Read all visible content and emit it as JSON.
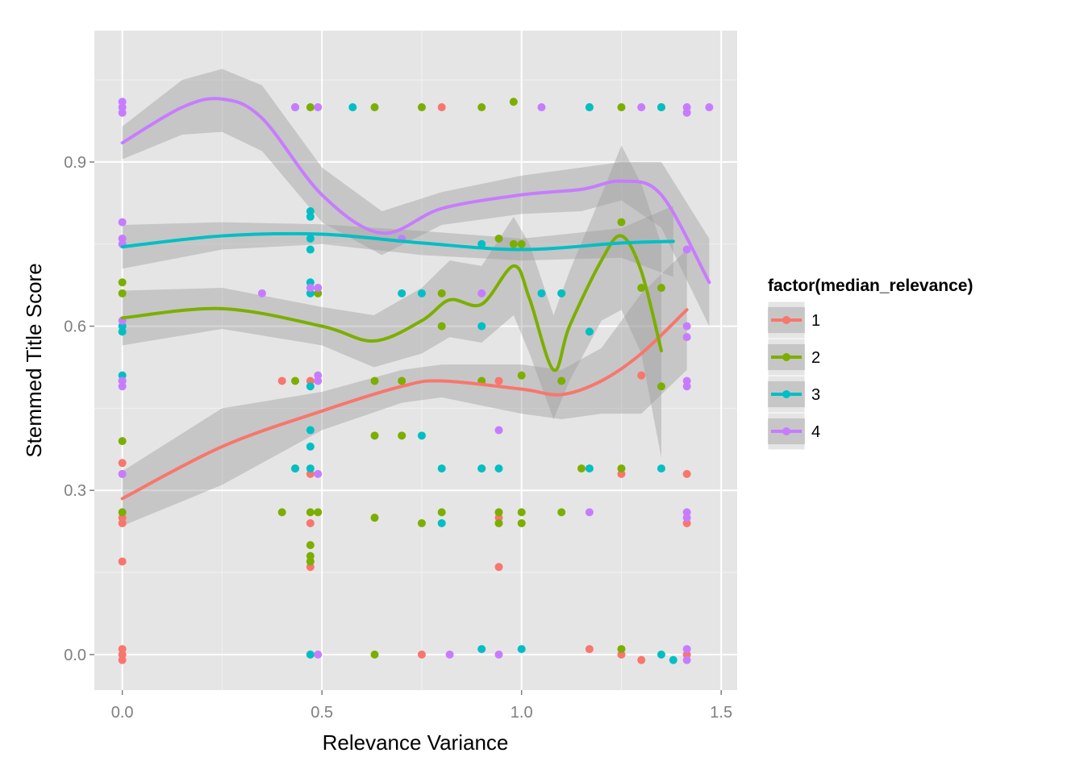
{
  "chart_data": {
    "type": "scatter",
    "title": "",
    "xlabel": "Relevance Variance",
    "ylabel": "Stemmed Title Score",
    "xlim": [
      -0.07,
      1.54
    ],
    "ylim": [
      -0.065,
      1.14
    ],
    "x_ticks": [
      0.0,
      0.5,
      1.0,
      1.5
    ],
    "x_tick_labels": [
      "0.0",
      "0.5",
      "1.0",
      "1.5"
    ],
    "y_ticks": [
      0.0,
      0.3,
      0.6,
      0.9
    ],
    "y_tick_labels": [
      "0.0",
      "0.3",
      "0.6",
      "0.9"
    ],
    "grid": true,
    "legend": {
      "title": "factor(median_relevance)",
      "position": "right"
    },
    "colors": {
      "panel": "#e5e5e5",
      "grid_major": "#ffffff",
      "grid_minor": "#f2f2f2",
      "ribbon": "#999999"
    },
    "x_levels": [
      0.0,
      0.4,
      0.433,
      0.471,
      0.49,
      0.5,
      0.577,
      0.632,
      0.7,
      0.75,
      0.8,
      0.816,
      0.9,
      0.943,
      0.98,
      1.0,
      1.1,
      1.15,
      1.17,
      1.25,
      1.3,
      1.35,
      1.414
    ],
    "series": [
      {
        "name": "1",
        "color": "#f8766d",
        "points": [
          [
            0.0,
            0.0
          ],
          [
            0.0,
            0.01
          ],
          [
            0.0,
            -0.01
          ],
          [
            0.0,
            0.25
          ],
          [
            0.0,
            0.24
          ],
          [
            0.0,
            0.33
          ],
          [
            0.0,
            0.35
          ],
          [
            0.0,
            0.17
          ],
          [
            0.0,
            0.5
          ],
          [
            0.4,
            0.5
          ],
          [
            0.471,
            0.0
          ],
          [
            0.471,
            0.24
          ],
          [
            0.471,
            0.33
          ],
          [
            0.471,
            0.16
          ],
          [
            0.471,
            0.5
          ],
          [
            0.75,
            0.0
          ],
          [
            0.8,
            1.0
          ],
          [
            0.943,
            0.16
          ],
          [
            0.943,
            0.25
          ],
          [
            0.943,
            0.5
          ],
          [
            1.17,
            0.01
          ],
          [
            1.17,
            1.0
          ],
          [
            1.25,
            0.0
          ],
          [
            1.25,
            0.33
          ],
          [
            1.3,
            0.51
          ],
          [
            1.3,
            -0.01
          ],
          [
            1.414,
            0.33
          ],
          [
            1.414,
            0.24
          ],
          [
            1.414,
            0.0
          ]
        ],
        "smooth": [
          [
            0.0,
            0.285
          ],
          [
            0.25,
            0.38
          ],
          [
            0.5,
            0.445
          ],
          [
            0.7,
            0.49
          ],
          [
            0.8,
            0.5
          ],
          [
            1.0,
            0.485
          ],
          [
            1.1,
            0.475
          ],
          [
            1.2,
            0.5
          ],
          [
            1.3,
            0.55
          ],
          [
            1.414,
            0.63
          ]
        ],
        "band": [
          [
            0.0,
            0.235,
            0.335
          ],
          [
            0.25,
            0.31,
            0.45
          ],
          [
            0.5,
            0.41,
            0.48
          ],
          [
            0.7,
            0.46,
            0.52
          ],
          [
            0.8,
            0.47,
            0.53
          ],
          [
            1.0,
            0.44,
            0.53
          ],
          [
            1.1,
            0.43,
            0.52
          ],
          [
            1.2,
            0.44,
            0.56
          ],
          [
            1.3,
            0.44,
            0.66
          ],
          [
            1.414,
            0.52,
            0.74
          ]
        ]
      },
      {
        "name": "2",
        "color": "#7cae00",
        "points": [
          [
            0.0,
            0.39
          ],
          [
            0.0,
            0.26
          ],
          [
            0.0,
            0.68
          ],
          [
            0.0,
            0.66
          ],
          [
            0.4,
            0.26
          ],
          [
            0.433,
            0.5
          ],
          [
            0.433,
            0.34
          ],
          [
            0.471,
            0.26
          ],
          [
            0.471,
            0.2
          ],
          [
            0.471,
            0.18
          ],
          [
            0.471,
            0.17
          ],
          [
            0.471,
            1.0
          ],
          [
            0.49,
            0.26
          ],
          [
            0.49,
            0.66
          ],
          [
            0.632,
            0.0
          ],
          [
            0.632,
            0.25
          ],
          [
            0.632,
            0.4
          ],
          [
            0.632,
            0.5
          ],
          [
            0.632,
            1.0
          ],
          [
            0.7,
            0.4
          ],
          [
            0.7,
            0.5
          ],
          [
            0.75,
            0.24
          ],
          [
            0.75,
            1.0
          ],
          [
            0.8,
            0.26
          ],
          [
            0.8,
            0.6
          ],
          [
            0.8,
            0.66
          ],
          [
            0.9,
            0.34
          ],
          [
            0.9,
            0.5
          ],
          [
            0.9,
            1.0
          ],
          [
            0.943,
            0.26
          ],
          [
            0.943,
            0.24
          ],
          [
            0.943,
            0.76
          ],
          [
            0.98,
            1.01
          ],
          [
            0.98,
            0.75
          ],
          [
            1.0,
            0.26
          ],
          [
            1.0,
            0.24
          ],
          [
            1.0,
            0.75
          ],
          [
            1.0,
            0.51
          ],
          [
            1.1,
            0.26
          ],
          [
            1.1,
            0.5
          ],
          [
            1.1,
            0.66
          ],
          [
            1.15,
            0.34
          ],
          [
            1.25,
            0.79
          ],
          [
            1.25,
            0.34
          ],
          [
            1.25,
            1.0
          ],
          [
            1.25,
            0.01
          ],
          [
            1.3,
            0.67
          ],
          [
            1.35,
            0.49
          ],
          [
            1.35,
            0.67
          ],
          [
            1.35,
            1.0
          ]
        ],
        "smooth": [
          [
            0.0,
            0.615
          ],
          [
            0.25,
            0.632
          ],
          [
            0.5,
            0.6
          ],
          [
            0.63,
            0.573
          ],
          [
            0.75,
            0.61
          ],
          [
            0.82,
            0.648
          ],
          [
            0.9,
            0.64
          ],
          [
            0.98,
            0.71
          ],
          [
            1.02,
            0.65
          ],
          [
            1.08,
            0.52
          ],
          [
            1.12,
            0.6
          ],
          [
            1.2,
            0.72
          ],
          [
            1.25,
            0.765
          ],
          [
            1.3,
            0.7
          ],
          [
            1.35,
            0.555
          ]
        ],
        "band": [
          [
            0.0,
            0.565,
            0.665
          ],
          [
            0.25,
            0.595,
            0.67
          ],
          [
            0.5,
            0.565,
            0.635
          ],
          [
            0.63,
            0.525,
            0.62
          ],
          [
            0.75,
            0.55,
            0.67
          ],
          [
            0.82,
            0.58,
            0.72
          ],
          [
            0.9,
            0.57,
            0.71
          ],
          [
            0.98,
            0.62,
            0.8
          ],
          [
            1.02,
            0.55,
            0.75
          ],
          [
            1.08,
            0.43,
            0.62
          ],
          [
            1.12,
            0.5,
            0.7
          ],
          [
            1.2,
            0.61,
            0.84
          ],
          [
            1.25,
            0.63,
            0.93
          ],
          [
            1.3,
            0.55,
            0.86
          ],
          [
            1.35,
            0.36,
            0.75
          ]
        ]
      },
      {
        "name": "3",
        "color": "#00bfc4",
        "points": [
          [
            0.0,
            0.59
          ],
          [
            0.0,
            0.6
          ],
          [
            0.0,
            0.51
          ],
          [
            0.433,
            1.0
          ],
          [
            0.433,
            0.34
          ],
          [
            0.471,
            0.81
          ],
          [
            0.471,
            0.8
          ],
          [
            0.471,
            0.76
          ],
          [
            0.471,
            0.74
          ],
          [
            0.471,
            0.68
          ],
          [
            0.471,
            0.66
          ],
          [
            0.471,
            0.41
          ],
          [
            0.471,
            0.38
          ],
          [
            0.471,
            0.34
          ],
          [
            0.471,
            0.49
          ],
          [
            0.471,
            0.0
          ],
          [
            0.577,
            1.0
          ],
          [
            0.7,
            0.66
          ],
          [
            0.75,
            0.4
          ],
          [
            0.75,
            0.66
          ],
          [
            0.8,
            0.34
          ],
          [
            0.8,
            0.24
          ],
          [
            0.9,
            0.6
          ],
          [
            0.9,
            0.75
          ],
          [
            0.9,
            0.34
          ],
          [
            0.9,
            0.01
          ],
          [
            0.943,
            0.34
          ],
          [
            1.0,
            0.01
          ],
          [
            1.05,
            0.66
          ],
          [
            1.1,
            0.66
          ],
          [
            1.17,
            0.59
          ],
          [
            1.17,
            0.34
          ],
          [
            1.17,
            1.0
          ],
          [
            1.35,
            0.34
          ],
          [
            1.35,
            1.0
          ],
          [
            1.35,
            0.0
          ],
          [
            1.38,
            -0.01
          ]
        ],
        "smooth": [
          [
            0.0,
            0.745
          ],
          [
            0.25,
            0.765
          ],
          [
            0.5,
            0.768
          ],
          [
            0.75,
            0.752
          ],
          [
            1.0,
            0.74
          ],
          [
            1.25,
            0.752
          ],
          [
            1.38,
            0.755
          ]
        ],
        "band": [
          [
            0.0,
            0.705,
            0.785
          ],
          [
            0.25,
            0.74,
            0.79
          ],
          [
            0.5,
            0.75,
            0.786
          ],
          [
            0.75,
            0.73,
            0.774
          ],
          [
            1.0,
            0.72,
            0.76
          ],
          [
            1.25,
            0.725,
            0.779
          ],
          [
            1.38,
            0.69,
            0.82
          ]
        ]
      },
      {
        "name": "4",
        "color": "#c77cff",
        "points": [
          [
            0.0,
            1.0
          ],
          [
            0.0,
            1.01
          ],
          [
            0.0,
            0.99
          ],
          [
            0.0,
            0.79
          ],
          [
            0.0,
            0.76
          ],
          [
            0.0,
            0.75
          ],
          [
            0.0,
            0.61
          ],
          [
            0.0,
            0.49
          ],
          [
            0.0,
            0.5
          ],
          [
            0.0,
            0.33
          ],
          [
            0.35,
            0.66
          ],
          [
            0.433,
            1.0
          ],
          [
            0.471,
            0.67
          ],
          [
            0.49,
            0.67
          ],
          [
            0.49,
            0.51
          ],
          [
            0.49,
            0.5
          ],
          [
            0.49,
            1.0
          ],
          [
            0.49,
            0.33
          ],
          [
            0.49,
            0.0
          ],
          [
            0.7,
            0.76
          ],
          [
            0.82,
            0.0
          ],
          [
            0.9,
            0.66
          ],
          [
            0.943,
            0.41
          ],
          [
            0.943,
            0.0
          ],
          [
            1.05,
            1.0
          ],
          [
            1.17,
            0.26
          ],
          [
            1.3,
            1.0
          ],
          [
            1.414,
            1.0
          ],
          [
            1.414,
            0.99
          ],
          [
            1.414,
            0.74
          ],
          [
            1.414,
            0.6
          ],
          [
            1.414,
            0.58
          ],
          [
            1.414,
            0.49
          ],
          [
            1.414,
            0.5
          ],
          [
            1.414,
            0.26
          ],
          [
            1.414,
            0.25
          ],
          [
            1.414,
            0.01
          ],
          [
            1.414,
            -0.01
          ],
          [
            1.47,
            1.0
          ]
        ],
        "smooth": [
          [
            0.0,
            0.935
          ],
          [
            0.15,
            1.0
          ],
          [
            0.25,
            1.015
          ],
          [
            0.35,
            0.98
          ],
          [
            0.5,
            0.84
          ],
          [
            0.65,
            0.77
          ],
          [
            0.8,
            0.815
          ],
          [
            1.0,
            0.84
          ],
          [
            1.15,
            0.85
          ],
          [
            1.25,
            0.865
          ],
          [
            1.35,
            0.84
          ],
          [
            1.47,
            0.68
          ]
        ],
        "band": [
          [
            0.0,
            0.905,
            0.965
          ],
          [
            0.15,
            0.95,
            1.05
          ],
          [
            0.25,
            0.955,
            1.07
          ],
          [
            0.35,
            0.92,
            1.04
          ],
          [
            0.5,
            0.79,
            0.89
          ],
          [
            0.65,
            0.73,
            0.81
          ],
          [
            0.8,
            0.785,
            0.845
          ],
          [
            1.0,
            0.805,
            0.875
          ],
          [
            1.15,
            0.81,
            0.89
          ],
          [
            1.25,
            0.83,
            0.9
          ],
          [
            1.35,
            0.78,
            0.9
          ],
          [
            1.47,
            0.6,
            0.76
          ]
        ]
      }
    ]
  }
}
